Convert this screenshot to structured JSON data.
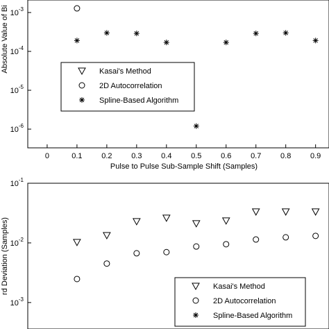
{
  "chart_data": [
    {
      "type": "scatter",
      "log_y": true,
      "y_label": "Absolute Value of Bi",
      "x_label": "Pulse to Pulse Sub-Sample Shift (Samples)",
      "x": [
        0.1,
        0.2,
        0.3,
        0.4,
        0.5,
        0.6,
        0.7,
        0.8,
        0.9
      ],
      "xlim": [
        -0.065,
        0.945
      ],
      "xticks": [
        0,
        0.1,
        0.2,
        0.3,
        0.4,
        0.5,
        0.6,
        0.7,
        0.8,
        0.9
      ],
      "ylim": [
        3.3e-07,
        0.0021
      ],
      "yticks": [
        {
          "value": 0.001,
          "label": "10",
          "exponent": "-3"
        },
        {
          "value": 0.0001,
          "label": "10",
          "exponent": "-4"
        },
        {
          "value": 1e-05,
          "label": "10",
          "exponent": "-5"
        },
        {
          "value": 1e-06,
          "label": "10",
          "exponent": "-6"
        }
      ],
      "series": [
        {
          "name": "Kasai's Method",
          "color": "#000000",
          "marker": "triangle-down",
          "values": [
            null,
            null,
            null,
            null,
            null,
            null,
            null,
            null,
            null
          ]
        },
        {
          "name": "2D Autocorrelation",
          "color": "#000000",
          "marker": "circle",
          "values": [
            0.00128,
            null,
            null,
            null,
            null,
            null,
            null,
            null,
            null
          ]
        },
        {
          "name": "Spline-Based Algorithm",
          "color": "#000000",
          "marker": "asterisk",
          "values": [
            0.00019,
            0.0003,
            0.00029,
            0.00017,
            1.2e-06,
            0.00017,
            0.00029,
            0.0003,
            0.00019
          ]
        }
      ]
    },
    {
      "type": "scatter",
      "log_y": true,
      "y_label": "rd Deviation (Samples)",
      "x": [
        0.1,
        0.2,
        0.3,
        0.4,
        0.5,
        0.6,
        0.7,
        0.8,
        0.9
      ],
      "xlim": [
        -0.065,
        0.945
      ],
      "ylim": [
        0.00036,
        0.1
      ],
      "yticks": [
        {
          "value": 0.1,
          "label": "10",
          "exponent": "-1"
        },
        {
          "value": 0.01,
          "label": "10",
          "exponent": "-2"
        },
        {
          "value": 0.001,
          "label": "10",
          "exponent": "-3"
        }
      ],
      "series": [
        {
          "name": "Kasai's Method",
          "color": "#000000",
          "marker": "triangle-down",
          "values": [
            0.0103,
            0.0134,
            0.023,
            0.0263,
            0.0212,
            0.0236,
            0.0334,
            0.0334,
            0.0334
          ]
        },
        {
          "name": "2D Autocorrelation",
          "color": "#000000",
          "marker": "circle",
          "values": [
            0.00248,
            0.0045,
            0.0067,
            0.007,
            0.0087,
            0.0095,
            0.0114,
            0.0124,
            0.0131
          ]
        },
        {
          "name": "Spline-Based Algorithm",
          "color": "#000000",
          "marker": "asterisk",
          "values": [
            null,
            null,
            null,
            null,
            null,
            null,
            null,
            null,
            null
          ]
        }
      ]
    }
  ]
}
